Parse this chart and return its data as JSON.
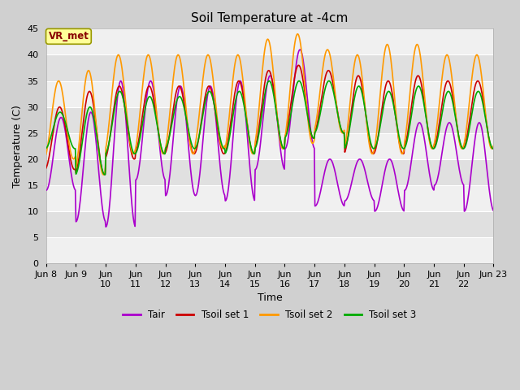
{
  "title": "Soil Temperature at -4cm",
  "xlabel": "Time",
  "ylabel": "Temperature (C)",
  "ylim": [
    0,
    45
  ],
  "yticks": [
    0,
    5,
    10,
    15,
    20,
    25,
    30,
    35,
    40,
    45
  ],
  "xlabels": [
    "Jun 8",
    "Jun 9",
    "Jun\n10",
    "Jun\n11",
    "Jun\n12",
    "Jun\n13",
    "Jun\n14",
    "Jun\n15",
    "Jun\n16",
    "Jun\n17",
    "Jun\n18",
    "Jun\n19",
    "Jun\n20",
    "Jun\n21",
    "Jun\n22",
    "Jun 23"
  ],
  "colors": {
    "Tair": "#aa00cc",
    "Tsoil1": "#cc0000",
    "Tsoil2": "#ff9900",
    "Tsoil3": "#00aa00"
  },
  "fig_bg": "#d0d0d0",
  "plot_bg": "#e8e8e8",
  "grid_bg_light": "#f0f0f0",
  "grid_bg_dark": "#dcdcdc",
  "annotation_text": "VR_met",
  "annotation_bg": "#ffff99",
  "annotation_edge": "#999900",
  "annotation_fg": "#880000",
  "legend_labels": [
    "Tair",
    "Tsoil set 1",
    "Tsoil set 2",
    "Tsoil set 3"
  ],
  "n_days": 15,
  "points_per_day": 48,
  "tair_min": [
    14,
    8,
    7,
    16,
    13,
    13,
    12,
    18,
    22,
    11,
    12,
    10,
    14,
    15,
    10
  ],
  "tair_max": [
    28,
    29,
    35,
    35,
    34,
    34,
    35,
    36,
    41,
    20,
    20,
    20,
    27,
    27,
    27
  ],
  "tsoil1_min": [
    18,
    17,
    20,
    21,
    21,
    21,
    21,
    22,
    24,
    25,
    21,
    21,
    22,
    22,
    22
  ],
  "tsoil1_max": [
    30,
    33,
    34,
    34,
    34,
    34,
    35,
    37,
    38,
    37,
    36,
    35,
    36,
    35,
    35
  ],
  "tsoil2_min": [
    20,
    17,
    21,
    21,
    21,
    22,
    21,
    22,
    23,
    25,
    21,
    21,
    22,
    22,
    22
  ],
  "tsoil2_max": [
    35,
    37,
    40,
    40,
    40,
    40,
    40,
    43,
    44,
    41,
    40,
    42,
    42,
    40,
    40
  ],
  "tsoil3_min": [
    22,
    17,
    21,
    21,
    22,
    22,
    21,
    22,
    24,
    25,
    22,
    22,
    22,
    22,
    22
  ],
  "tsoil3_max": [
    29,
    30,
    33,
    32,
    32,
    33,
    33,
    35,
    35,
    35,
    34,
    33,
    34,
    33,
    33
  ]
}
